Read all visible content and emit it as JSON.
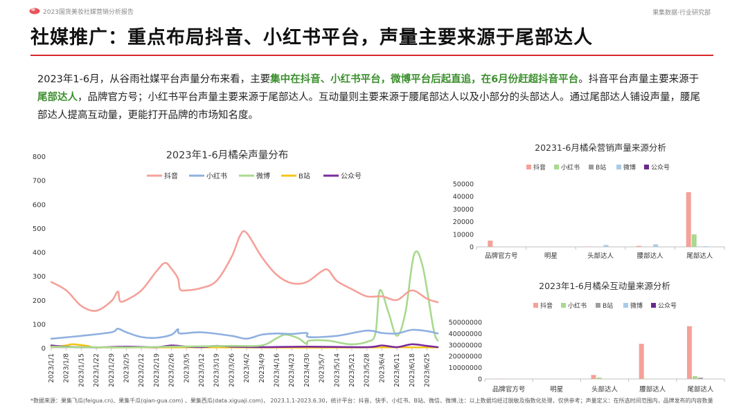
{
  "header": {
    "report_name": "2023国货美妆社媒营销分析报告",
    "brand": "果集数据·行业研究部",
    "accent_color": "#d9262c"
  },
  "title": "社媒推广：重点布局抖音、小红书平台，声量主要来源于尾部达人",
  "summary": {
    "p1": "2023年1-6月，从谷雨社媒平台声量分布来看，主要",
    "h1": "集中在抖音、小红书平台，微博平台后起直追，在6月份赶超抖音平台",
    "p2": "。抖音平台声量主要来源于",
    "h2": "尾部达人",
    "p3": "，品牌官方号；小红书平台声量主要来源于尾部达人。互动量则主要来源于腰尾部达人以及小部分的头部达人。通过尾部达人铺设声量，腰尾部达人提高互动量，更能打开品牌的市场知名度。"
  },
  "footnote": "*数据来源：果集飞瓜(feigua.cn)、果集千瓜(qian-gua.com) 、果集西瓜(data.xiguaji.com)， 2023.1.1-2023.6.30，统计平台：抖音、快手、小红书、B站、微信、微博,注：以上数据均经过脱敏及指数化处理，仅供参考；声量定义：在所选时间范围内，品牌发布的内容数量",
  "colors": {
    "抖音": "#f4a199",
    "小红书": "#8fb0e0",
    "微博": "#a8d98e",
    "B站": "#f5c518",
    "公众号": "#7b2a9c",
    "bar_抖音": "#f4a199",
    "bar_小红书": "#a8d98e",
    "bar_B站": "#9e9e9e",
    "bar_微博": "#a9cbe8",
    "bar_公众号": "#6a2a8c"
  },
  "chart_data": [
    {
      "type": "line",
      "title": "2023年1-6月橘朵声量分布",
      "ylim": [
        0,
        800
      ],
      "yticks": [
        0,
        100,
        200,
        300,
        400,
        500,
        600,
        700,
        800
      ],
      "legend_position": "top",
      "grid": false,
      "xlabels": [
        "2023/1/1",
        "2023/1/8",
        "2023/1/15",
        "2023/1/22",
        "2023/1/29",
        "2023/2/5",
        "2023/2/12",
        "2023/2/19",
        "2023/2/26",
        "2023/3/5",
        "2023/3/12",
        "2023/3/19",
        "2023/3/26",
        "2023/4/2",
        "2023/4/9",
        "2023/4/16",
        "2023/4/23",
        "2023/4/30",
        "2023/5/7",
        "2023/5/14",
        "2023/5/21",
        "2023/5/28",
        "2023/6/4",
        "2023/6/11",
        "2023/6/18",
        "2023/6/25"
      ],
      "x_end": "2023/6/30",
      "series": [
        {
          "name": "抖音",
          "points": [
            [
              "2023/1/1",
              275
            ],
            [
              "2023/1/8",
              240
            ],
            [
              "2023/1/15",
              175
            ],
            [
              "2023/1/22",
              155
            ],
            [
              "2023/1/29",
              195
            ],
            [
              "2023/2/1",
              235
            ],
            [
              "2023/2/2",
              195
            ],
            [
              "2023/2/5",
              200
            ],
            [
              "2023/2/12",
              240
            ],
            [
              "2023/2/19",
              320
            ],
            [
              "2023/2/23",
              355
            ],
            [
              "2023/2/26",
              330
            ],
            [
              "2023/3/1",
              290
            ],
            [
              "2023/3/2",
              245
            ],
            [
              "2023/3/5",
              240
            ],
            [
              "2023/3/12",
              250
            ],
            [
              "2023/3/19",
              280
            ],
            [
              "2023/3/26",
              380
            ],
            [
              "2023/3/30",
              470
            ],
            [
              "2023/4/2",
              480
            ],
            [
              "2023/4/9",
              380
            ],
            [
              "2023/4/16",
              305
            ],
            [
              "2023/4/23",
              270
            ],
            [
              "2023/4/30",
              275
            ],
            [
              "2023/5/7",
              320
            ],
            [
              "2023/5/10",
              325
            ],
            [
              "2023/5/14",
              280
            ],
            [
              "2023/5/21",
              245
            ],
            [
              "2023/5/28",
              215
            ],
            [
              "2023/6/4",
              215
            ],
            [
              "2023/6/11",
              200
            ],
            [
              "2023/6/18",
              240
            ],
            [
              "2023/6/25",
              205
            ],
            [
              "2023/6/30",
              190
            ]
          ]
        },
        {
          "name": "小红书",
          "points": [
            [
              "2023/1/1",
              38
            ],
            [
              "2023/1/15",
              50
            ],
            [
              "2023/1/29",
              65
            ],
            [
              "2023/2/1",
              80
            ],
            [
              "2023/2/5",
              65
            ],
            [
              "2023/2/12",
              45
            ],
            [
              "2023/2/19",
              42
            ],
            [
              "2023/2/26",
              55
            ],
            [
              "2023/3/1",
              78
            ],
            [
              "2023/3/2",
              60
            ],
            [
              "2023/3/12",
              65
            ],
            [
              "2023/3/26",
              50
            ],
            [
              "2023/4/2",
              38
            ],
            [
              "2023/4/9",
              55
            ],
            [
              "2023/4/16",
              60
            ],
            [
              "2023/4/23",
              58
            ],
            [
              "2023/4/30",
              62
            ],
            [
              "2023/5/1",
              45
            ],
            [
              "2023/5/14",
              50
            ],
            [
              "2023/5/28",
              72
            ],
            [
              "2023/6/4",
              62
            ],
            [
              "2023/6/11",
              60
            ],
            [
              "2023/6/18",
              75
            ],
            [
              "2023/6/25",
              70
            ],
            [
              "2023/6/30",
              60
            ]
          ]
        },
        {
          "name": "微博",
          "points": [
            [
              "2023/1/1",
              5
            ],
            [
              "2023/1/15",
              3
            ],
            [
              "2023/2/5",
              2
            ],
            [
              "2023/2/26",
              5
            ],
            [
              "2023/3/26",
              8
            ],
            [
              "2023/4/9",
              10
            ],
            [
              "2023/4/16",
              40
            ],
            [
              "2023/4/20",
              55
            ],
            [
              "2023/4/26",
              40
            ],
            [
              "2023/4/30",
              15
            ],
            [
              "2023/5/1",
              30
            ],
            [
              "2023/5/10",
              30
            ],
            [
              "2023/5/20",
              15
            ],
            [
              "2023/5/28",
              25
            ],
            [
              "2023/6/1",
              60
            ],
            [
              "2023/6/3",
              240
            ],
            [
              "2023/6/7",
              150
            ],
            [
              "2023/6/11",
              50
            ],
            [
              "2023/6/15",
              150
            ],
            [
              "2023/6/19",
              390
            ],
            [
              "2023/6/23",
              340
            ],
            [
              "2023/6/28",
              80
            ],
            [
              "2023/6/30",
              30
            ]
          ]
        },
        {
          "name": "B站",
          "points": [
            [
              "2023/1/1",
              3
            ],
            [
              "2023/1/8",
              10
            ],
            [
              "2023/1/11",
              15
            ],
            [
              "2023/1/18",
              8
            ],
            [
              "2023/1/22",
              2
            ],
            [
              "2023/2/12",
              2
            ],
            [
              "2023/3/26",
              2
            ],
            [
              "2023/4/30",
              1
            ],
            [
              "2023/5/28",
              2
            ],
            [
              "2023/6/30",
              2
            ]
          ]
        },
        {
          "name": "公众号",
          "points": [
            [
              "2023/1/1",
              10
            ],
            [
              "2023/1/8",
              5
            ],
            [
              "2023/1/22",
              2
            ],
            [
              "2023/2/5",
              5
            ],
            [
              "2023/2/19",
              3
            ],
            [
              "2023/2/26",
              10
            ],
            [
              "2023/3/5",
              5
            ],
            [
              "2023/3/12",
              3
            ],
            [
              "2023/3/19",
              8
            ],
            [
              "2023/3/26",
              5
            ],
            [
              "2023/4/9",
              3
            ],
            [
              "2023/4/30",
              5
            ],
            [
              "2023/5/28",
              3
            ],
            [
              "2023/6/4",
              10
            ],
            [
              "2023/6/11",
              3
            ],
            [
              "2023/6/18",
              15
            ],
            [
              "2023/6/25",
              8
            ],
            [
              "2023/6/30",
              3
            ]
          ]
        }
      ]
    },
    {
      "type": "bar",
      "title": "20231-6月橘朵营销声量来源分析",
      "categories": [
        "品牌官方号",
        "明星",
        "头部达人",
        "腰部达人",
        "尾部达人"
      ],
      "ylim": [
        0,
        50000
      ],
      "yticks": [
        0,
        10000,
        20000,
        30000,
        40000,
        50000
      ],
      "legend_position": "top",
      "series": [
        {
          "name": "抖音",
          "values": [
            5000,
            0,
            300,
            800,
            43500
          ]
        },
        {
          "name": "小红书",
          "values": [
            0,
            0,
            0,
            0,
            10000
          ]
        },
        {
          "name": "B站",
          "values": [
            0,
            0,
            0,
            0,
            0
          ]
        },
        {
          "name": "微博",
          "values": [
            0,
            0,
            1500,
            2000,
            500
          ]
        },
        {
          "name": "公众号",
          "values": [
            0,
            0,
            0,
            0,
            0
          ]
        }
      ]
    },
    {
      "type": "bar",
      "title": "2023年1-6月橘朵互动量来源分析",
      "categories": [
        "品牌官方号",
        "明星",
        "头部达人",
        "腰部达人",
        "尾部达人"
      ],
      "ylim": [
        0,
        50000000
      ],
      "yticks": [
        0,
        10000000,
        20000000,
        30000000,
        40000000,
        50000000
      ],
      "legend_position": "top",
      "series": [
        {
          "name": "抖音",
          "values": [
            300000,
            0,
            3500000,
            31000000,
            46500000
          ]
        },
        {
          "name": "小红书",
          "values": [
            0,
            0,
            1200000,
            300000,
            2500000
          ]
        },
        {
          "name": "B站",
          "values": [
            0,
            0,
            0,
            0,
            1200000
          ]
        },
        {
          "name": "微博",
          "values": [
            0,
            0,
            0,
            0,
            200000
          ]
        },
        {
          "name": "公众号",
          "values": [
            0,
            0,
            0,
            0,
            0
          ]
        }
      ]
    }
  ]
}
